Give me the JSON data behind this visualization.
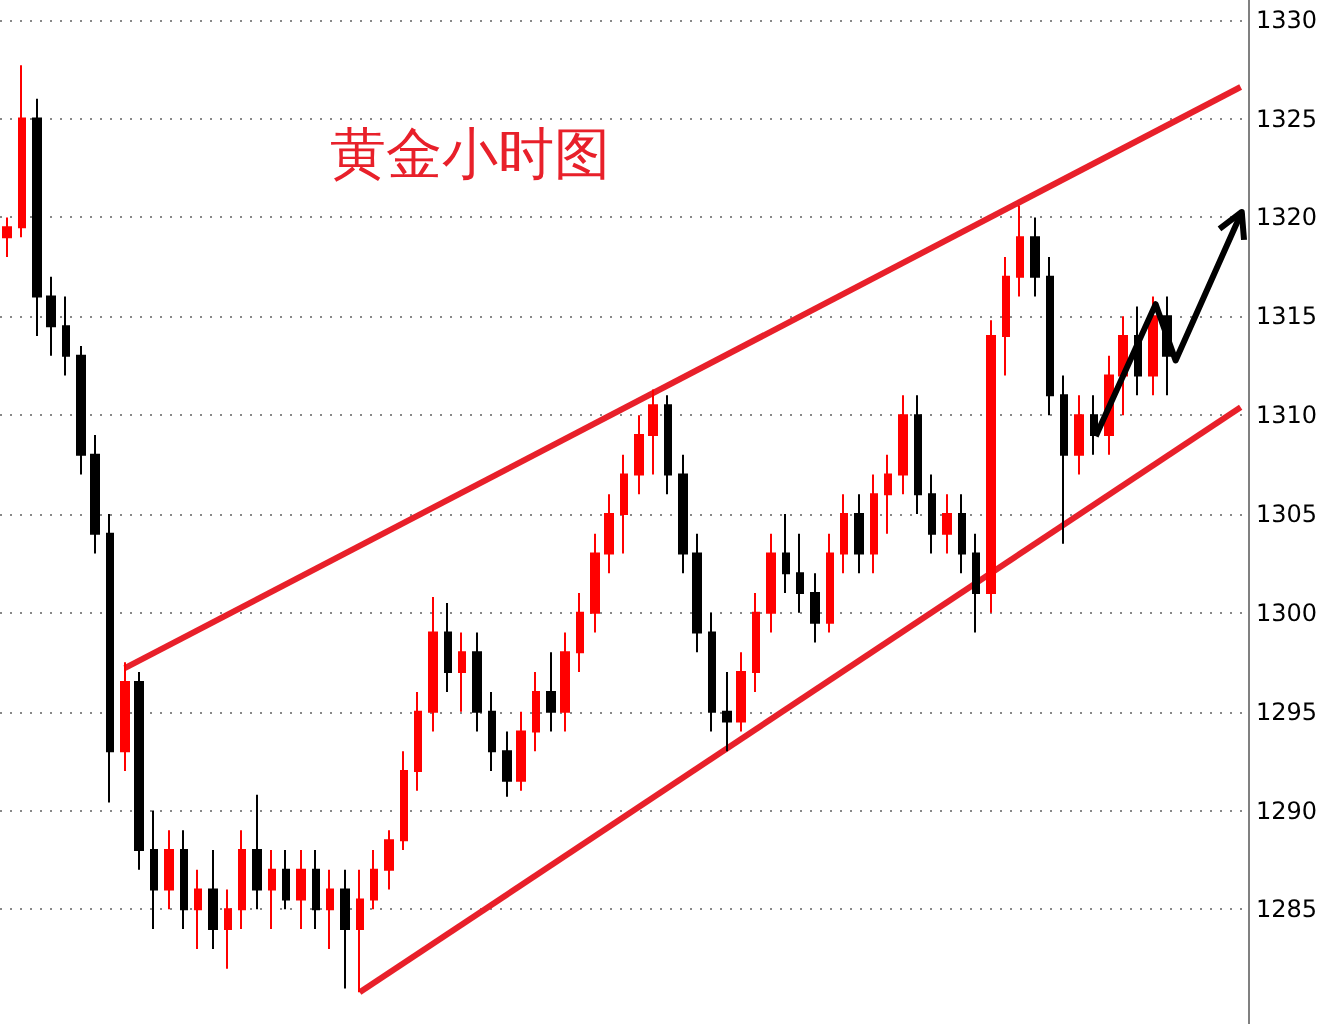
{
  "chart_data": {
    "type": "candlestick",
    "title": "黄金小时图",
    "categories": [
      null,
      null,
      null,
      null,
      null,
      null,
      null,
      null,
      null,
      null,
      null,
      null,
      null,
      null,
      null,
      null,
      null,
      null,
      null,
      null,
      null,
      null,
      null,
      null,
      null,
      null,
      null,
      null,
      null,
      null,
      null,
      null,
      null,
      null,
      null,
      null,
      null,
      null,
      null,
      null,
      null,
      null,
      null,
      null,
      null,
      null,
      null,
      null,
      null,
      null,
      null,
      null,
      null,
      null,
      null,
      null,
      null,
      null,
      null,
      null,
      null,
      null,
      null,
      null,
      null,
      null,
      null,
      null,
      null,
      null,
      null,
      null,
      null,
      null,
      null,
      null,
      null,
      null,
      null,
      null,
      null,
      null,
      null,
      null,
      null
    ],
    "ohlc": [
      [
        1319,
        1320,
        1318,
        1319.5
      ],
      [
        1319.5,
        1327.7,
        1319,
        1325
      ],
      [
        1325,
        1326,
        1314,
        1316
      ],
      [
        1316,
        1317,
        1313,
        1314.5
      ],
      [
        1314.5,
        1316,
        1312,
        1313
      ],
      [
        1313,
        1313.5,
        1307,
        1308
      ],
      [
        1308,
        1309,
        1303,
        1304
      ],
      [
        1304,
        1305,
        1290.4,
        1293
      ],
      [
        1293,
        1297.5,
        1292,
        1296.5
      ],
      [
        1296.5,
        1297,
        1287,
        1288
      ],
      [
        1288,
        1290,
        1284,
        1286
      ],
      [
        1286,
        1289,
        1285,
        1288
      ],
      [
        1288,
        1289,
        1284,
        1285
      ],
      [
        1285,
        1287,
        1283,
        1286
      ],
      [
        1286,
        1288,
        1283,
        1284
      ],
      [
        1284,
        1286,
        1282,
        1285
      ],
      [
        1285,
        1289,
        1284,
        1288
      ],
      [
        1288,
        1290.8,
        1285,
        1286
      ],
      [
        1286,
        1288,
        1284,
        1287
      ],
      [
        1287,
        1288,
        1285,
        1285.5
      ],
      [
        1285.5,
        1288,
        1284,
        1287
      ],
      [
        1287,
        1288,
        1284,
        1285
      ],
      [
        1285,
        1287,
        1283,
        1286
      ],
      [
        1286,
        1287,
        1281,
        1284
      ],
      [
        1284,
        1287,
        1280.8,
        1285.5
      ],
      [
        1285.5,
        1288,
        1285,
        1287
      ],
      [
        1287,
        1289,
        1286,
        1288.5
      ],
      [
        1288.5,
        1293,
        1288,
        1292
      ],
      [
        1292,
        1296,
        1291,
        1295
      ],
      [
        1295,
        1300.8,
        1294,
        1299
      ],
      [
        1299,
        1300.5,
        1296,
        1297
      ],
      [
        1297,
        1299,
        1295,
        1298
      ],
      [
        1298,
        1299,
        1294,
        1295
      ],
      [
        1295,
        1296,
        1292,
        1293
      ],
      [
        1293,
        1294,
        1290.7,
        1291.5
      ],
      [
        1291.5,
        1295,
        1291,
        1294
      ],
      [
        1294,
        1297,
        1293,
        1296
      ],
      [
        1296,
        1298,
        1294,
        1295
      ],
      [
        1295,
        1299,
        1294,
        1298
      ],
      [
        1298,
        1301,
        1297,
        1300
      ],
      [
        1300,
        1304,
        1299,
        1303
      ],
      [
        1303,
        1306,
        1302,
        1305
      ],
      [
        1305,
        1308,
        1303,
        1307
      ],
      [
        1307,
        1310,
        1306,
        1309
      ],
      [
        1309,
        1311.3,
        1307,
        1310.5
      ],
      [
        1310.5,
        1311,
        1306,
        1307
      ],
      [
        1307,
        1308,
        1302,
        1303
      ],
      [
        1303,
        1304,
        1298,
        1299
      ],
      [
        1299,
        1300,
        1294,
        1295
      ],
      [
        1295,
        1297,
        1293,
        1294.5
      ],
      [
        1294.5,
        1298,
        1294,
        1297
      ],
      [
        1297,
        1301,
        1296,
        1300
      ],
      [
        1300,
        1304,
        1299,
        1303
      ],
      [
        1303,
        1305,
        1301,
        1302
      ],
      [
        1302,
        1304,
        1300,
        1301
      ],
      [
        1301,
        1302,
        1298.5,
        1299.5
      ],
      [
        1299.5,
        1304,
        1299,
        1303
      ],
      [
        1303,
        1306,
        1302,
        1305
      ],
      [
        1305,
        1306,
        1302,
        1303
      ],
      [
        1303,
        1307,
        1302,
        1306
      ],
      [
        1306,
        1308,
        1304,
        1307
      ],
      [
        1307,
        1311,
        1306,
        1310
      ],
      [
        1310,
        1311,
        1305,
        1306
      ],
      [
        1306,
        1307,
        1303,
        1304
      ],
      [
        1304,
        1306,
        1303,
        1305
      ],
      [
        1305,
        1306,
        1302,
        1303
      ],
      [
        1303,
        1304,
        1299,
        1301
      ],
      [
        1301,
        1314.8,
        1300,
        1314
      ],
      [
        1314,
        1318,
        1312,
        1317
      ],
      [
        1317,
        1320.6,
        1316,
        1319
      ],
      [
        1319,
        1320,
        1316,
        1317
      ],
      [
        1317,
        1318,
        1310,
        1311
      ],
      [
        1311,
        1312,
        1303.5,
        1308
      ],
      [
        1308,
        1311,
        1307,
        1310
      ],
      [
        1310,
        1311,
        1308,
        1309
      ],
      [
        1309,
        1313,
        1308,
        1312
      ],
      [
        1312,
        1315,
        1310,
        1314
      ],
      [
        1314,
        1315.5,
        1311,
        1312
      ],
      [
        1312,
        1316,
        1311,
        1315
      ],
      [
        1315,
        1316,
        1311,
        1313
      ],
      null,
      null,
      null,
      null,
      null
    ],
    "colors": [
      "#ff0000",
      "#ff0000",
      "#000000",
      "#000000",
      "#000000",
      "#000000",
      "#000000",
      "#000000",
      "#ff0000",
      "#000000",
      "#000000",
      "#ff0000",
      "#000000",
      "#ff0000",
      "#000000",
      "#ff0000",
      "#ff0000",
      "#000000",
      "#ff0000",
      "#000000",
      "#ff0000",
      "#000000",
      "#ff0000",
      "#000000",
      "#ff0000",
      "#ff0000",
      "#ff0000",
      "#ff0000",
      "#ff0000",
      "#ff0000",
      "#000000",
      "#ff0000",
      "#000000",
      "#000000",
      "#000000",
      "#ff0000",
      "#ff0000",
      "#000000",
      "#ff0000",
      "#ff0000",
      "#ff0000",
      "#ff0000",
      "#ff0000",
      "#ff0000",
      "#ff0000",
      "#000000",
      "#000000",
      "#000000",
      "#000000",
      "#000000",
      "#ff0000",
      "#ff0000",
      "#ff0000",
      "#000000",
      "#000000",
      "#000000",
      "#ff0000",
      "#ff0000",
      "#000000",
      "#ff0000",
      "#ff0000",
      "#ff0000",
      "#000000",
      "#000000",
      "#ff0000",
      "#000000",
      "#000000",
      "#ff0000",
      "#ff0000",
      "#ff0000",
      "#000000",
      "#000000",
      "#000000",
      "#ff0000",
      "#000000",
      "#ff0000",
      "#ff0000",
      "#000000",
      "#ff0000",
      "#000000",
      null,
      null,
      null,
      null,
      null
    ],
    "series": [
      {
        "type": "line",
        "color": "#e8202a",
        "values": [
          null,
          null,
          null,
          null,
          null,
          null,
          null,
          null,
          1297.2,
          null,
          null,
          null,
          null,
          null,
          null,
          null,
          null,
          null,
          null,
          null,
          null,
          null,
          null,
          null,
          null,
          null,
          null,
          null,
          null,
          null,
          null,
          null,
          null,
          null,
          null,
          null,
          null,
          null,
          null,
          null,
          null,
          null,
          null,
          null,
          null,
          null,
          null,
          null,
          null,
          null,
          null,
          null,
          null,
          null,
          null,
          null,
          null,
          null,
          null,
          null,
          null,
          null,
          null,
          null,
          null,
          null,
          null,
          null,
          null,
          null,
          null,
          null,
          null,
          null,
          null,
          null,
          null,
          null,
          null,
          null,
          null,
          null,
          null,
          null,
          1326.6
        ]
      },
      {
        "type": "line",
        "color": "#e8202a",
        "values": [
          null,
          null,
          null,
          null,
          null,
          null,
          null,
          null,
          null,
          null,
          null,
          null,
          null,
          null,
          null,
          null,
          null,
          null,
          null,
          null,
          null,
          null,
          null,
          null,
          1280.8,
          null,
          null,
          null,
          null,
          null,
          null,
          null,
          null,
          null,
          null,
          null,
          null,
          null,
          null,
          null,
          null,
          null,
          null,
          null,
          null,
          null,
          null,
          null,
          null,
          null,
          null,
          null,
          null,
          null,
          null,
          null,
          null,
          null,
          null,
          null,
          null,
          null,
          null,
          null,
          null,
          null,
          null,
          null,
          null,
          null,
          null,
          null,
          null,
          null,
          null,
          null,
          null,
          null,
          null,
          null,
          null,
          null,
          null,
          null,
          1310.4
        ]
      }
    ],
    "ylim": [
      1279.2,
      1331
    ],
    "yticks": [
      1285,
      1290,
      1295,
      1300,
      1305,
      1310,
      1315,
      1320,
      1325,
      1330
    ],
    "grid": "y",
    "tick_labels": "y"
  }
}
